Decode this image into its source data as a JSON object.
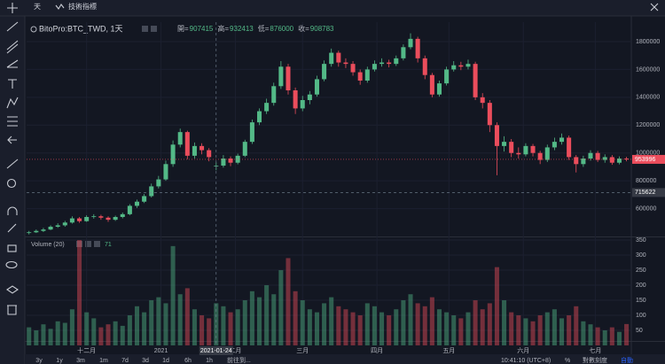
{
  "toolbar": {
    "interval": "天",
    "indicators": "技術指標"
  },
  "chart_data": {
    "type": "candlestick",
    "symbol": "BitoPro:BTC_TWD, 1天",
    "legend_labels": {
      "open": "開=",
      "high": "高=",
      "low": "低=",
      "close": "收="
    },
    "up_color": "#53b987",
    "down_color": "#eb4d5c",
    "x": [
      1,
      4,
      7,
      10,
      13,
      16,
      19,
      22,
      25,
      28,
      31,
      34,
      37,
      40,
      43,
      46,
      49,
      52,
      55,
      58,
      61,
      64,
      67,
      70,
      73,
      76,
      79,
      82,
      85,
      88,
      91,
      94,
      97,
      100,
      103,
      106,
      109,
      112,
      115,
      118,
      121,
      124,
      127,
      130,
      133,
      136,
      139,
      142,
      145,
      148,
      151,
      154,
      157,
      160,
      163,
      166,
      169,
      172,
      175,
      178,
      181,
      184,
      187,
      190,
      193,
      196,
      199,
      202,
      205,
      208,
      211,
      214,
      217,
      220,
      223,
      226,
      229,
      232,
      235,
      238,
      241,
      244,
      247,
      250
    ],
    "open": [
      425000,
      430000,
      440000,
      450000,
      470000,
      480000,
      500000,
      530000,
      510000,
      540000,
      545000,
      535000,
      520000,
      540000,
      560000,
      620000,
      650000,
      690000,
      760000,
      810000,
      920000,
      1060000,
      1150000,
      980000,
      1050000,
      1020000,
      907415,
      909000,
      960000,
      930000,
      980000,
      1080000,
      1220000,
      1300000,
      1360000,
      1480000,
      1620000,
      1450000,
      1320000,
      1380000,
      1420000,
      1530000,
      1640000,
      1720000,
      1650000,
      1640000,
      1580000,
      1520000,
      1600000,
      1640000,
      1650000,
      1640000,
      1680000,
      1760000,
      1820000,
      1680000,
      1560000,
      1420000,
      1500000,
      1600000,
      1630000,
      1620000,
      1640000,
      1400000,
      1360000,
      1200000,
      1050000,
      1080000,
      1000000,
      990000,
      1050000,
      1000000,
      950000,
      1040000,
      1080000,
      1110000,
      970000,
      920000,
      960000,
      1000000,
      950000,
      970000,
      930000,
      960000
    ],
    "high": [
      440000,
      450000,
      462000,
      480000,
      495000,
      512000,
      545000,
      540000,
      552000,
      560000,
      556000,
      545000,
      550000,
      572000,
      632000,
      665000,
      705000,
      780000,
      835000,
      945000,
      1090000,
      1175000,
      1160000,
      1075000,
      1070000,
      1035000,
      932413,
      985000,
      975000,
      995000,
      1095000,
      1240000,
      1320000,
      1390000,
      1505000,
      1660000,
      1640000,
      1470000,
      1410000,
      1445000,
      1555000,
      1665000,
      1750000,
      1735000,
      1680000,
      1660000,
      1600000,
      1620000,
      1665000,
      1680000,
      1670000,
      1700000,
      1780000,
      1860000,
      1835000,
      1700000,
      1575000,
      1520000,
      1620000,
      1660000,
      1655000,
      1670000,
      1655000,
      1430000,
      1380000,
      1220000,
      1120000,
      1100000,
      1040000,
      1070000,
      1065000,
      1015000,
      1060000,
      1110000,
      1140000,
      1125000,
      985000,
      980000,
      1020000,
      1015000,
      990000,
      985000,
      975000,
      972000
    ],
    "low": [
      415000,
      425000,
      432000,
      445000,
      462000,
      470000,
      492000,
      498000,
      505000,
      528000,
      520000,
      505000,
      512000,
      530000,
      552000,
      605000,
      640000,
      680000,
      745000,
      800000,
      900000,
      1040000,
      955000,
      960000,
      990000,
      940000,
      876000,
      895000,
      905000,
      918000,
      970000,
      1065000,
      1200000,
      1280000,
      1340000,
      1460000,
      1420000,
      1280000,
      1300000,
      1350000,
      1405000,
      1515000,
      1620000,
      1620000,
      1610000,
      1555000,
      1490000,
      1505000,
      1585000,
      1620000,
      1615000,
      1625000,
      1665000,
      1745000,
      1650000,
      1530000,
      1400000,
      1405000,
      1485000,
      1585000,
      1595000,
      1600000,
      1380000,
      1320000,
      1150000,
      840000,
      1010000,
      970000,
      960000,
      975000,
      975000,
      920000,
      935000,
      1020000,
      1060000,
      950000,
      860000,
      900000,
      945000,
      935000,
      930000,
      915000,
      918000,
      940000
    ],
    "close": [
      430000,
      440000,
      450000,
      470000,
      480000,
      500000,
      530000,
      510000,
      540000,
      545000,
      535000,
      520000,
      540000,
      560000,
      620000,
      650000,
      690000,
      760000,
      810000,
      920000,
      1060000,
      1150000,
      980000,
      1050000,
      1020000,
      970000,
      908783,
      960000,
      930000,
      980000,
      1080000,
      1220000,
      1300000,
      1360000,
      1480000,
      1620000,
      1450000,
      1320000,
      1380000,
      1420000,
      1530000,
      1640000,
      1720000,
      1650000,
      1640000,
      1580000,
      1520000,
      1600000,
      1640000,
      1650000,
      1640000,
      1680000,
      1760000,
      1820000,
      1680000,
      1560000,
      1420000,
      1500000,
      1600000,
      1630000,
      1620000,
      1640000,
      1400000,
      1360000,
      1200000,
      1050000,
      1080000,
      1000000,
      990000,
      1050000,
      1000000,
      950000,
      1040000,
      1080000,
      1110000,
      970000,
      920000,
      960000,
      1000000,
      950000,
      970000,
      930000,
      960000,
      953996
    ],
    "xlim": [
      0,
      252
    ],
    "ylim": [
      400000,
      1940000
    ],
    "yticks": [
      600000,
      800000,
      1000000,
      1200000,
      1400000,
      1600000,
      1800000
    ],
    "xticks": [
      {
        "value": 25,
        "label": "十二月"
      },
      {
        "value": 56,
        "label": "2021"
      },
      {
        "value": 87,
        "label": "二月"
      },
      {
        "value": 115,
        "label": "三月"
      },
      {
        "value": 146,
        "label": "四月"
      },
      {
        "value": 176,
        "label": "五月"
      },
      {
        "value": 207,
        "label": "六月"
      },
      {
        "value": 237,
        "label": "七月"
      }
    ],
    "crosshair": {
      "x": {
        "value": 79,
        "label": "2021-01-24"
      },
      "y": 715622
    },
    "volume": {
      "title": "Volume (20)",
      "ylim": [
        0,
        359
      ],
      "yticks": [
        50,
        100,
        150,
        200,
        250,
        300,
        350
      ],
      "values": [
        60,
        50,
        70,
        55,
        80,
        75,
        120,
        350,
        110,
        90,
        60,
        70,
        80,
        65,
        100,
        130,
        110,
        150,
        160,
        140,
        330,
        170,
        190,
        120,
        100,
        90,
        140,
        130,
        110,
        120,
        150,
        180,
        160,
        200,
        170,
        250,
        290,
        180,
        150,
        120,
        110,
        140,
        160,
        130,
        120,
        110,
        100,
        140,
        130,
        110,
        100,
        120,
        150,
        170,
        140,
        130,
        160,
        120,
        110,
        100,
        90,
        110,
        150,
        120,
        140,
        260,
        150,
        110,
        100,
        90,
        80,
        100,
        110,
        120,
        90,
        100,
        130,
        80,
        70,
        60,
        50,
        60,
        45,
        71
      ]
    }
  },
  "bottom_bar": {
    "ranges": [
      "3y",
      "1y",
      "3m",
      "1m",
      "7d",
      "3d",
      "1d",
      "6h",
      "1h"
    ],
    "goto": "前往到...",
    "time": "10:41:10 (UTC+8)",
    "percent": "%",
    "log": "對數刻度",
    "auto": "自動"
  }
}
